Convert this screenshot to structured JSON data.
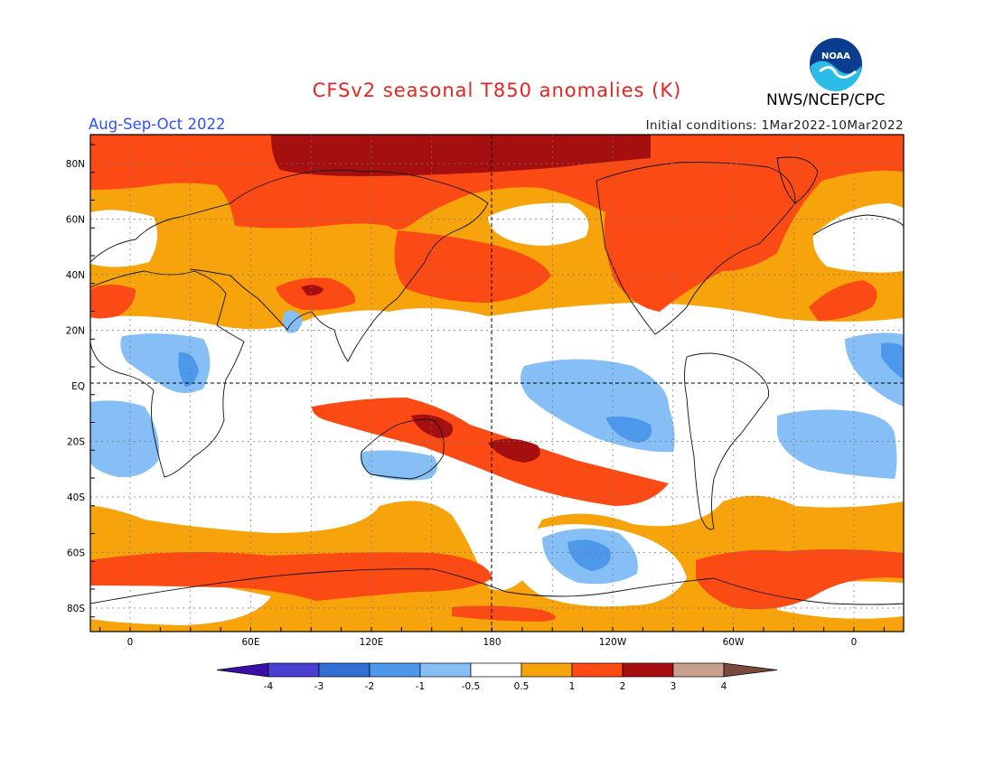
{
  "title": "CFSv2 seasonal T850 anomalies (K)",
  "season": "Aug-Sep-Oct 2022",
  "initial_conditions": "Initial conditions: 1Mar2022-10Mar2022",
  "agency": "NWS/NCEP/CPC",
  "logo_text": "NOAA",
  "lat_labels": [
    "80N",
    "60N",
    "40N",
    "20N",
    "EQ",
    "20S",
    "40S",
    "60S",
    "80S"
  ],
  "lon_labels": [
    "0",
    "60E",
    "120E",
    "180",
    "120W",
    "60W",
    "0"
  ],
  "colorbar": {
    "labels": [
      "-4",
      "-3",
      "-2",
      "-1",
      "-0.5",
      "0.5",
      "1",
      "2",
      "3",
      "4"
    ],
    "colors": [
      "#3a0fa8",
      "#4a3fd0",
      "#2f6fd6",
      "#4d98ea",
      "#85bff5",
      "#ffffff",
      "#f7a30b",
      "#fb4a14",
      "#a50f0f",
      "#c8a08e",
      "#7a4b3c"
    ]
  },
  "palette": {
    "white": "#ffffff",
    "orange": "#f7a30b",
    "red": "#fb4a14",
    "darkred": "#a50f0f",
    "lightblue": "#85bff5",
    "midblue": "#4d98ea",
    "blue": "#2f6fd6"
  }
}
